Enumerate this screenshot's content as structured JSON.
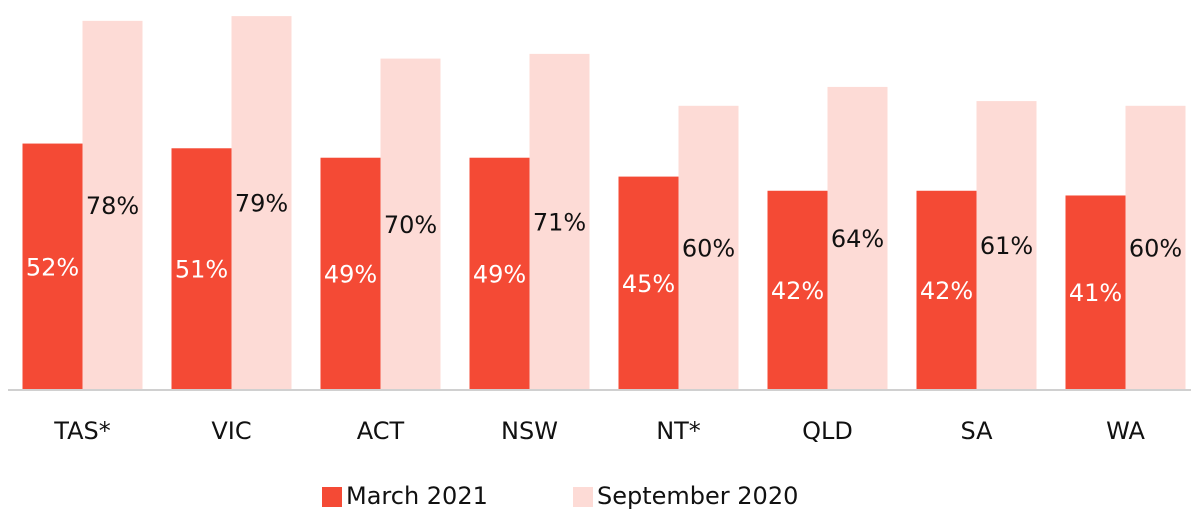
{
  "chart_data": {
    "type": "bar",
    "categories": [
      "TAS*",
      "VIC",
      "ACT",
      "NSW",
      "NT*",
      "QLD",
      "SA",
      "WA"
    ],
    "series": [
      {
        "name": "March 2021",
        "color": "#f44a35",
        "values": [
          52,
          51,
          49,
          49,
          45,
          42,
          42,
          41
        ],
        "value_labels": [
          "52%",
          "51%",
          "49%",
          "49%",
          "45%",
          "42%",
          "42%",
          "41%"
        ]
      },
      {
        "name": "September 2020",
        "color": "#fddbd6",
        "values": [
          78,
          79,
          70,
          71,
          60,
          64,
          61,
          60
        ],
        "value_labels": [
          "78%",
          "79%",
          "70%",
          "71%",
          "60%",
          "64%",
          "61%",
          "60%"
        ]
      }
    ]
  }
}
